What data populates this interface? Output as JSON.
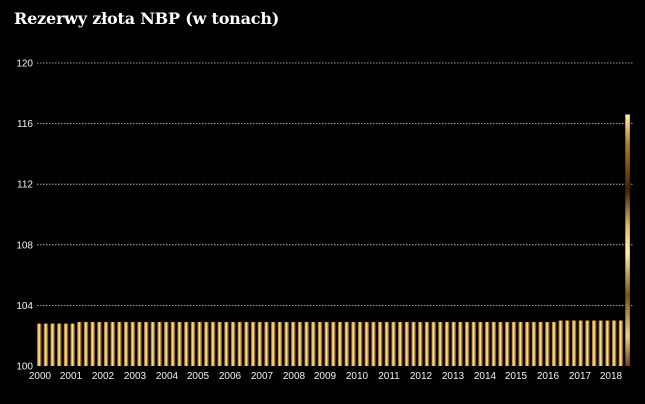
{
  "chart_data": {
    "type": "bar",
    "title": "Rezerwy złota NBP (w tonach)",
    "xlabel": "",
    "ylabel": "",
    "ylim": [
      100,
      120
    ],
    "yticks": [
      100,
      104,
      108,
      112,
      116,
      120
    ],
    "xticks": [
      "2000",
      "2001",
      "2002",
      "2003",
      "2004",
      "2005",
      "2006",
      "2007",
      "2008",
      "2009",
      "2010",
      "2011",
      "2012",
      "2013",
      "2014",
      "2015",
      "2016",
      "2017",
      "2018"
    ],
    "grid": true,
    "bar_fill": "gold gradient",
    "colors": {
      "background": "#000000",
      "grid": "#cfcfcf",
      "text": "#ffffff",
      "gold_light": "#fff1b0",
      "gold": "#d9a84a",
      "gold_dark": "#5a3a12"
    },
    "series": [
      {
        "values": [
          102.8,
          102.8,
          102.8,
          102.8,
          102.8,
          102.8,
          102.9,
          102.9,
          102.9,
          102.9,
          102.9,
          102.9,
          102.9,
          102.9,
          102.9,
          102.9,
          102.9,
          102.9,
          102.9,
          102.9,
          102.9,
          102.9,
          102.9,
          102.9,
          102.9,
          102.9,
          102.9,
          102.9,
          102.9,
          102.9,
          102.9,
          102.9,
          102.9,
          102.9,
          102.9,
          102.9,
          102.9,
          102.9,
          102.9,
          102.9,
          102.9,
          102.9,
          102.9,
          102.9,
          102.9,
          102.9,
          102.9,
          102.9,
          102.9,
          102.9,
          102.9,
          102.9,
          102.9,
          102.9,
          102.9,
          102.9,
          102.9,
          102.9,
          102.9,
          102.9,
          102.9,
          102.9,
          102.9,
          102.9,
          102.9,
          102.9,
          102.9,
          102.9,
          102.9,
          102.9,
          102.9,
          102.9,
          102.9,
          102.9,
          102.9,
          102.9,
          102.9,
          102.9,
          103.0,
          103.0,
          103.0,
          103.0,
          103.0,
          103.0,
          103.0,
          103.0,
          103.0,
          103.0,
          116.6
        ]
      }
    ]
  }
}
